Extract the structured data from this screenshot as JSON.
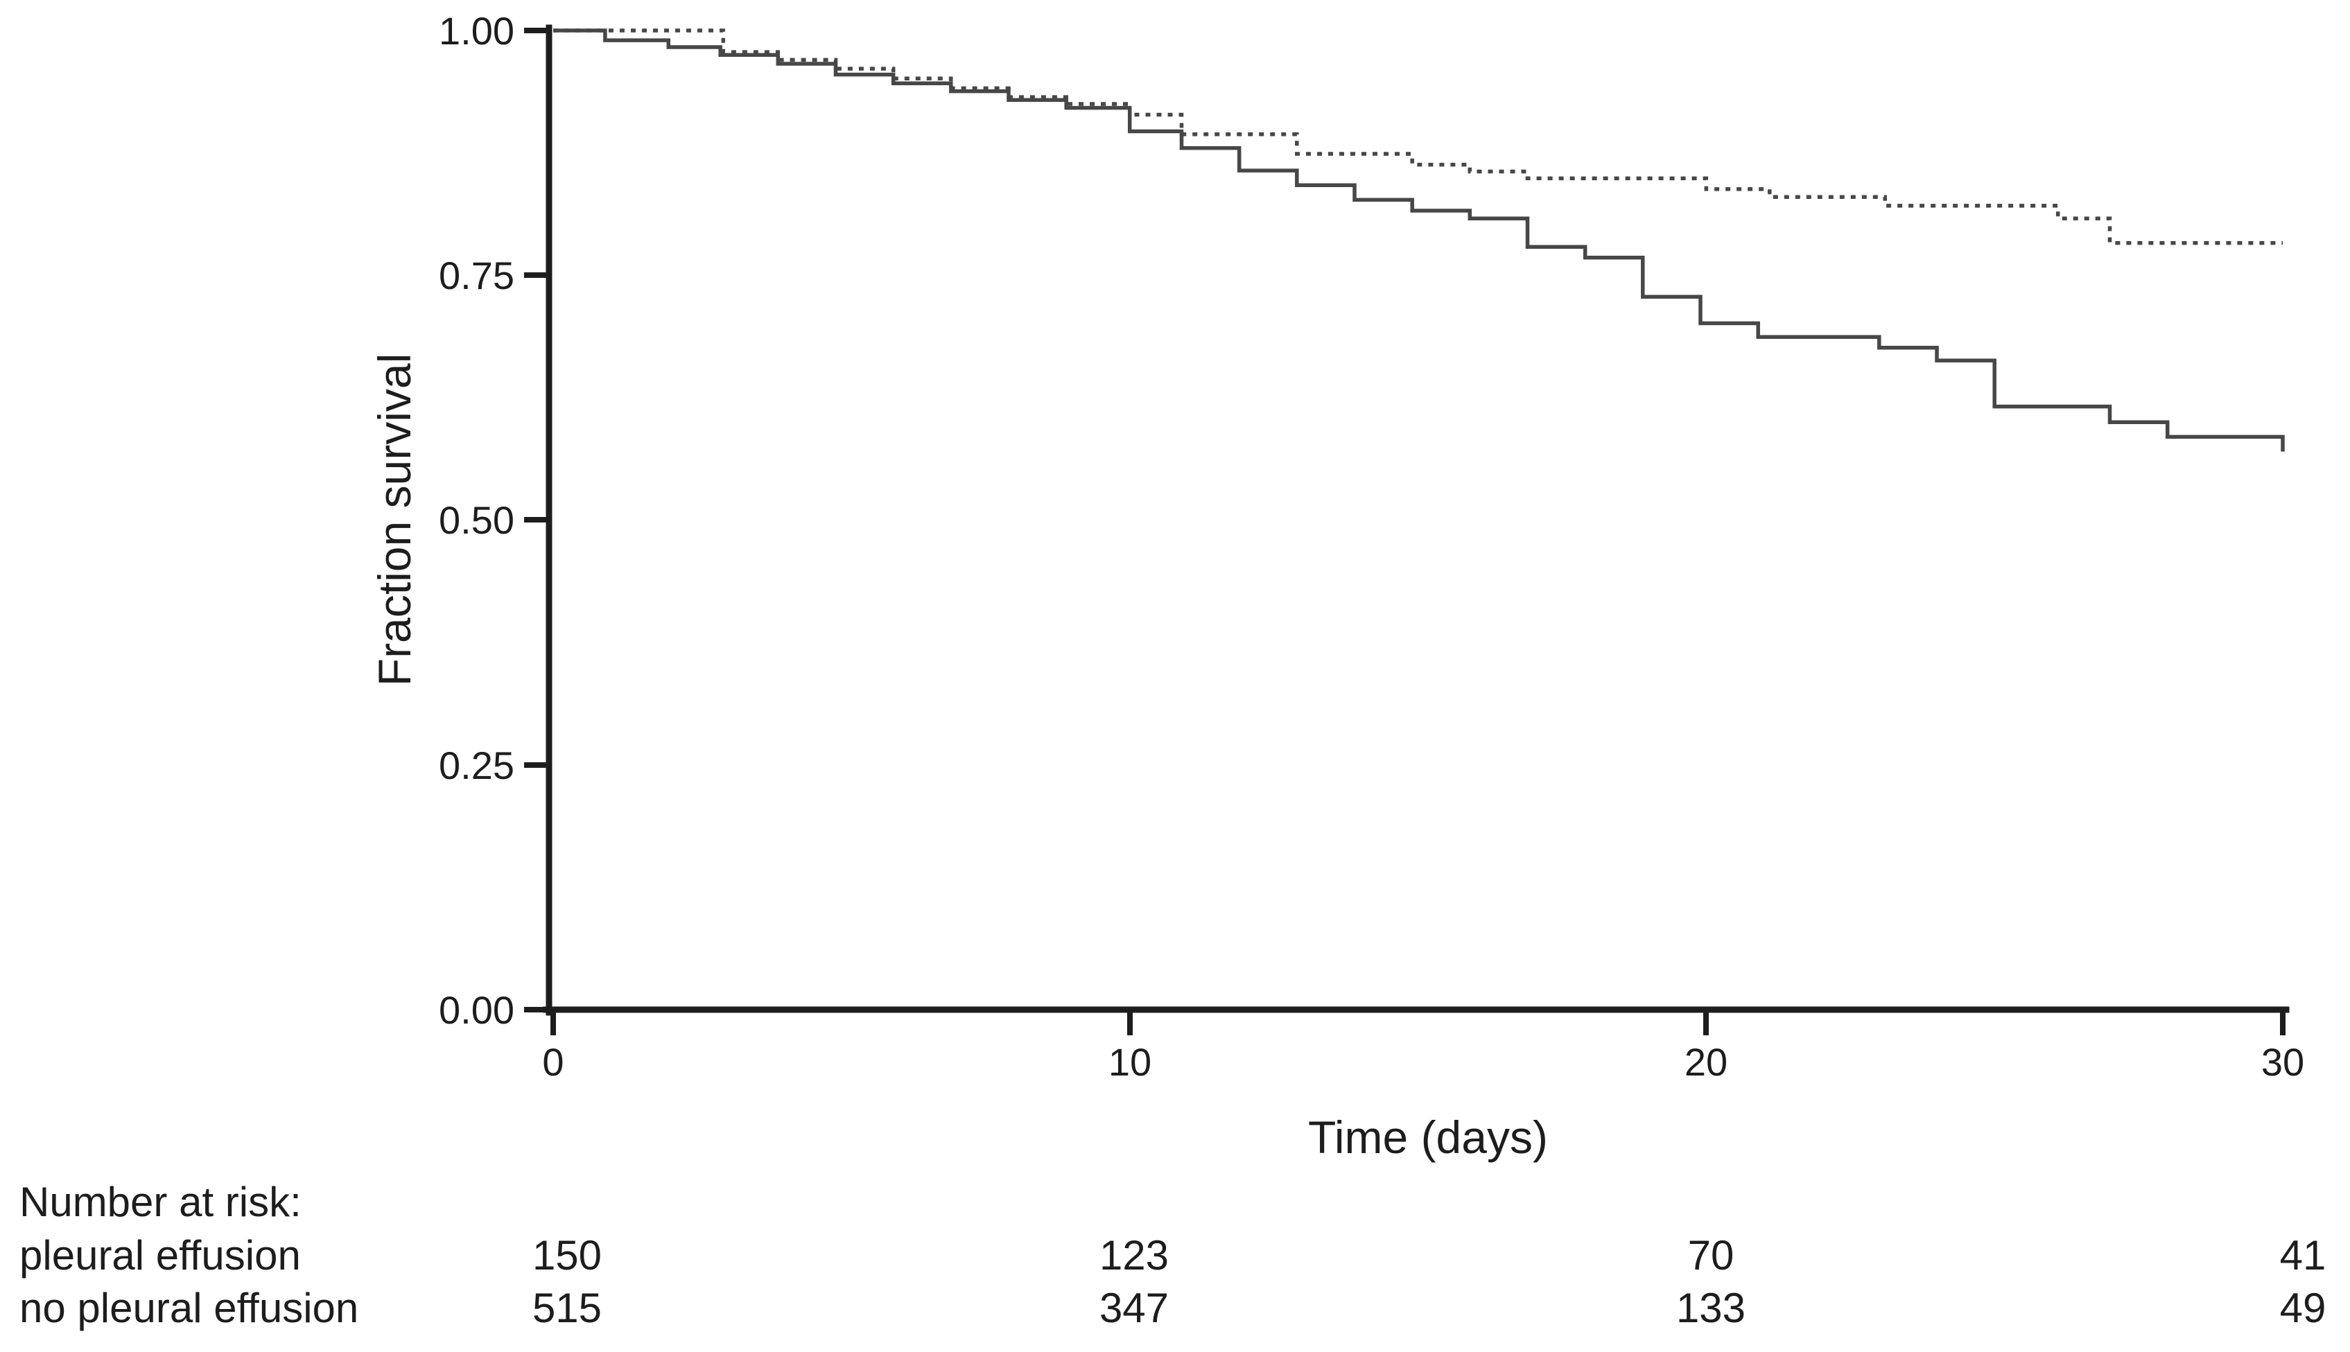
{
  "axes": {
    "ylabel": "Fraction survival",
    "xlabel": "Time (days)",
    "ytick_labels": [
      "1.00",
      "0.75",
      "0.50",
      "0.25",
      "0.00"
    ],
    "xtick_labels": [
      "0",
      "10",
      "20",
      "30"
    ]
  },
  "chart_data": {
    "type": "line",
    "subtype": "kaplan_meier_step",
    "title": "",
    "xlabel": "Time (days)",
    "ylabel": "Fraction survival",
    "xlim": [
      0,
      30
    ],
    "ylim": [
      0.0,
      1.0
    ],
    "xticks": [
      0,
      10,
      20,
      30
    ],
    "yticks": [
      0.0,
      0.25,
      0.5,
      0.75,
      1.0
    ],
    "grid": false,
    "legend_position": "none",
    "series": [
      {
        "id": "pleural-effusion",
        "name": "pleural effusion",
        "line_style": "solid",
        "color": "#474747",
        "points": [
          [
            0,
            1.0
          ],
          [
            0.9,
            0.99
          ],
          [
            2,
            0.983
          ],
          [
            2.9,
            0.975
          ],
          [
            3.9,
            0.966
          ],
          [
            4.9,
            0.955
          ],
          [
            5.9,
            0.946
          ],
          [
            6.9,
            0.938
          ],
          [
            7.9,
            0.929
          ],
          [
            8.9,
            0.921
          ],
          [
            10,
            0.897
          ],
          [
            10.9,
            0.88
          ],
          [
            11.9,
            0.857
          ],
          [
            12.9,
            0.842
          ],
          [
            13.9,
            0.827
          ],
          [
            14.9,
            0.816
          ],
          [
            15.9,
            0.808
          ],
          [
            16.9,
            0.779
          ],
          [
            17.9,
            0.768
          ],
          [
            18.9,
            0.728
          ],
          [
            19.9,
            0.701
          ],
          [
            20.9,
            0.687
          ],
          [
            23,
            0.676
          ],
          [
            24,
            0.663
          ],
          [
            25,
            0.616
          ],
          [
            27,
            0.6
          ],
          [
            28,
            0.585
          ],
          [
            30,
            0.57
          ]
        ]
      },
      {
        "id": "no-pleural-effusion",
        "name": "no pleural effusion",
        "line_style": "dashed",
        "color": "#474747",
        "points": [
          [
            0,
            1.0
          ],
          [
            2.95,
            0.978
          ],
          [
            3.9,
            0.97
          ],
          [
            4.9,
            0.961
          ],
          [
            5.9,
            0.951
          ],
          [
            6.9,
            0.941
          ],
          [
            7.9,
            0.932
          ],
          [
            8.9,
            0.925
          ],
          [
            10,
            0.914
          ],
          [
            10.9,
            0.894
          ],
          [
            12.9,
            0.874
          ],
          [
            14.9,
            0.863
          ],
          [
            15.9,
            0.856
          ],
          [
            16.9,
            0.849
          ],
          [
            20,
            0.838
          ],
          [
            21.1,
            0.83
          ],
          [
            23.1,
            0.821
          ],
          [
            26.1,
            0.808
          ],
          [
            27,
            0.783
          ],
          [
            30,
            0.783
          ]
        ]
      }
    ]
  },
  "risk_table": {
    "title": "Number at risk:",
    "time_points": [
      0,
      10,
      20,
      30
    ],
    "rows": [
      {
        "label": "pleural effusion",
        "counts": [
          "150",
          "123",
          "70",
          "41"
        ]
      },
      {
        "label": "no pleural effusion",
        "counts": [
          "515",
          "347",
          "133",
          "49"
        ]
      }
    ]
  },
  "colors": {
    "curve": "#474747",
    "axis": "#1d1d1d",
    "text": "#1d1d1d",
    "background": "#ffffff"
  }
}
